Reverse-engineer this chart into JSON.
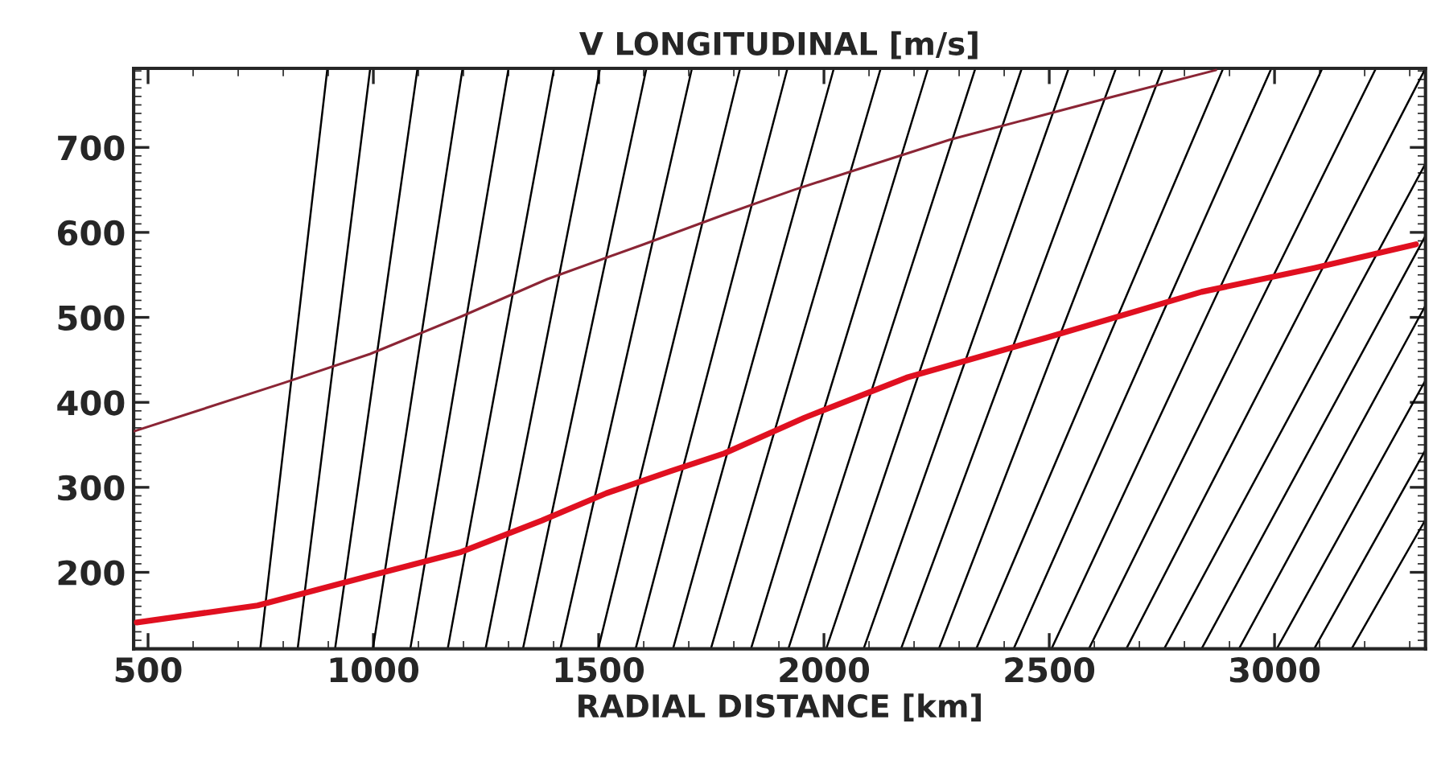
{
  "chart_data": {
    "type": "line",
    "title": "V LONGITUDINAL [m/s]",
    "xlabel": "RADIAL DISTANCE [km]",
    "xlim": [
      468,
      3335
    ],
    "ylim": [
      110,
      793
    ],
    "xticks": [
      500,
      1000,
      1500,
      2000,
      2500,
      3000
    ],
    "yticks": [
      200,
      300,
      400,
      500,
      600,
      700
    ],
    "grid": false,
    "marker": "none",
    "line_style": "solid",
    "series": [
      {
        "color": "#e01020",
        "x": [
          475,
          743,
          993,
          1195,
          1374,
          1517,
          1659,
          1779,
          1957,
          2183,
          2493,
          2838,
          3088,
          3314
        ],
        "values": [
          141,
          161,
          196,
          224,
          261,
          293,
          319,
          340,
          382,
          429,
          476,
          530,
          558,
          586
        ]
      },
      {
        "color": "#8b2535",
        "x": [
          469,
          802,
          993,
          1195,
          1386,
          1600,
          1779,
          1933,
          2279,
          2636,
          2870
        ],
        "values": [
          366,
          423,
          457,
          501,
          545,
          586,
          621,
          650,
          709,
          759,
          791
        ]
      },
      {
        "color": "#000000",
        "x": [
          749,
          898
        ],
        "values": [
          110,
          793
        ]
      },
      {
        "color": "#000000",
        "x": [
          832,
          993
        ],
        "values": [
          110,
          793
        ]
      },
      {
        "color": "#000000",
        "x": [
          915,
          1098
        ],
        "values": [
          110,
          793
        ]
      },
      {
        "color": "#000000",
        "x": [
          999,
          1198
        ],
        "values": [
          110,
          793
        ]
      },
      {
        "color": "#000000",
        "x": [
          1082,
          1300
        ],
        "values": [
          110,
          793
        ]
      },
      {
        "color": "#000000",
        "x": [
          1165,
          1401
        ],
        "values": [
          110,
          793
        ]
      },
      {
        "color": "#000000",
        "x": [
          1249,
          1503
        ],
        "values": [
          110,
          793
        ]
      },
      {
        "color": "#000000",
        "x": [
          1332,
          1606
        ],
        "values": [
          110,
          793
        ]
      },
      {
        "color": "#000000",
        "x": [
          1415,
          1707
        ],
        "values": [
          110,
          793
        ]
      },
      {
        "color": "#000000",
        "x": [
          1499,
          1814
        ],
        "values": [
          110,
          793
        ]
      },
      {
        "color": "#000000",
        "x": [
          1582,
          1919
        ],
        "values": [
          110,
          793
        ]
      },
      {
        "color": "#000000",
        "x": [
          1665,
          2022
        ],
        "values": [
          110,
          793
        ]
      },
      {
        "color": "#000000",
        "x": [
          1749,
          2126
        ],
        "values": [
          110,
          793
        ]
      },
      {
        "color": "#000000",
        "x": [
          1838,
          2231
        ],
        "values": [
          110,
          793
        ]
      },
      {
        "color": "#000000",
        "x": [
          1921,
          2336
        ],
        "values": [
          110,
          793
        ]
      },
      {
        "color": "#000000",
        "x": [
          2005,
          2439
        ],
        "values": [
          110,
          793
        ]
      },
      {
        "color": "#000000",
        "x": [
          2088,
          2543
        ],
        "values": [
          110,
          793
        ]
      },
      {
        "color": "#000000",
        "x": [
          2171,
          2648
        ],
        "values": [
          110,
          793
        ]
      },
      {
        "color": "#000000",
        "x": [
          2255,
          2752
        ],
        "values": [
          110,
          793
        ]
      },
      {
        "color": "#000000",
        "x": [
          2338,
          2886
        ],
        "values": [
          110,
          793
        ]
      },
      {
        "color": "#000000",
        "x": [
          2421,
          2993
        ],
        "values": [
          110,
          793
        ]
      },
      {
        "color": "#000000",
        "x": [
          2505,
          3106
        ],
        "values": [
          110,
          793
        ]
      },
      {
        "color": "#000000",
        "x": [
          2588,
          3225
        ],
        "values": [
          110,
          793
        ]
      },
      {
        "color": "#000000",
        "x": [
          2671,
          3335
        ],
        "values": [
          110,
          793
        ]
      },
      {
        "color": "#000000",
        "x": [
          2755,
          3335
        ],
        "values": [
          110,
          681
        ]
      },
      {
        "color": "#000000",
        "x": [
          2838,
          3335
        ],
        "values": [
          110,
          596
        ]
      },
      {
        "color": "#000000",
        "x": [
          2921,
          3335
        ],
        "values": [
          110,
          514
        ]
      },
      {
        "color": "#000000",
        "x": [
          3005,
          3335
        ],
        "values": [
          110,
          426
        ]
      },
      {
        "color": "#000000",
        "x": [
          3088,
          3335
        ],
        "values": [
          110,
          344
        ]
      },
      {
        "color": "#000000",
        "x": [
          3171,
          3335
        ],
        "values": [
          110,
          262
        ]
      }
    ]
  }
}
